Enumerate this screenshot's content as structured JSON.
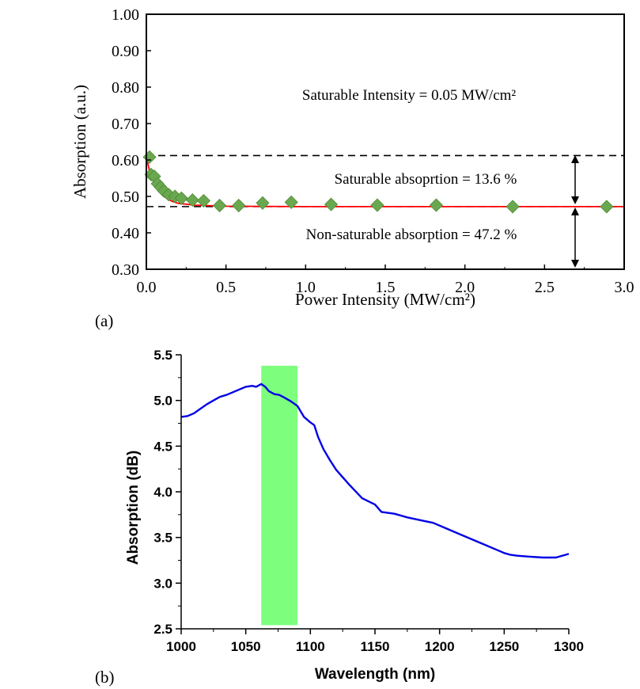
{
  "panel_a": {
    "label": "(a)",
    "annotations": {
      "saturable_intensity": "Saturable Intensity = 0.05 MW/cm²",
      "saturable_absorption": "Saturable absoprtion  = 13.6 %",
      "non_saturable_absorption": "Non-saturable absorption = 47.2 %"
    }
  },
  "panel_b": {
    "label": "(b)"
  },
  "colors": {
    "marker_green": "#6aa84f",
    "marker_edge": "#4f8a35",
    "fit_red": "#ff0000",
    "spectrum_blue": "#0000e6",
    "band_green": "#66ff66"
  },
  "chart_data": [
    {
      "type": "scatter",
      "xlabel": "Power Intensity (MW/cm²)",
      "ylabel": "Absorption (a.u.)",
      "xlim": [
        0,
        3.0
      ],
      "ylim": [
        0.3,
        1.0
      ],
      "x_ticks": [
        "0.0",
        "0.5",
        "1.0",
        "1.5",
        "2.0",
        "2.5",
        "3.0"
      ],
      "y_ticks": [
        "0.30",
        "0.40",
        "0.50",
        "0.60",
        "0.70",
        "0.80",
        "0.90",
        "1.00"
      ],
      "grid": false,
      "series": [
        {
          "kind": "markers",
          "marker": "diamond",
          "x": [
            0.02,
            0.03,
            0.05,
            0.07,
            0.09,
            0.11,
            0.14,
            0.18,
            0.22,
            0.29,
            0.36,
            0.46,
            0.58,
            0.73,
            0.91,
            1.16,
            1.45,
            1.82,
            2.3,
            2.89
          ],
          "y": [
            0.608,
            0.56,
            0.555,
            0.535,
            0.525,
            0.515,
            0.505,
            0.5,
            0.495,
            0.49,
            0.488,
            0.475,
            0.475,
            0.482,
            0.484,
            0.478,
            0.476,
            0.476,
            0.472,
            0.472
          ]
        },
        {
          "kind": "fit-line",
          "x": [
            0.0,
            0.02,
            0.05,
            0.08,
            0.12,
            0.16,
            0.2,
            0.3,
            0.5,
            1.0,
            2.0,
            3.0
          ],
          "y": [
            0.608,
            0.57,
            0.54,
            0.515,
            0.497,
            0.487,
            0.481,
            0.476,
            0.473,
            0.472,
            0.472,
            0.472
          ]
        }
      ],
      "reference_lines": [
        {
          "style": "dashed",
          "y": 0.612
        },
        {
          "style": "dashed",
          "y": 0.472
        }
      ]
    },
    {
      "type": "line",
      "xlabel": "Wavelength (nm)",
      "ylabel": "Absorption (dB)",
      "xlim": [
        1000,
        1300
      ],
      "ylim": [
        2.5,
        5.5
      ],
      "x_ticks": [
        "1000",
        "1050",
        "1100",
        "1150",
        "1200",
        "1250",
        "1300"
      ],
      "y_ticks": [
        "2.5",
        "3.0",
        "3.5",
        "4.0",
        "4.5",
        "5.0",
        "5.5"
      ],
      "grid": false,
      "highlight_band": {
        "x_from": 1062,
        "x_to": 1090,
        "y_from": 2.54,
        "y_to": 5.38
      },
      "series": [
        {
          "x": [
            1000,
            1005,
            1010,
            1015,
            1020,
            1025,
            1030,
            1035,
            1040,
            1045,
            1050,
            1055,
            1058,
            1062,
            1065,
            1068,
            1072,
            1076,
            1080,
            1085,
            1090,
            1095,
            1100,
            1103,
            1106,
            1110,
            1115,
            1120,
            1130,
            1140,
            1150,
            1155,
            1165,
            1175,
            1185,
            1195,
            1205,
            1215,
            1225,
            1235,
            1245,
            1250,
            1255,
            1260,
            1270,
            1280,
            1290,
            1300
          ],
          "y": [
            4.82,
            4.83,
            4.86,
            4.91,
            4.96,
            5.0,
            5.04,
            5.06,
            5.09,
            5.12,
            5.15,
            5.16,
            5.15,
            5.18,
            5.15,
            5.1,
            5.07,
            5.06,
            5.03,
            4.99,
            4.94,
            4.82,
            4.76,
            4.73,
            4.6,
            4.47,
            4.35,
            4.24,
            4.08,
            3.93,
            3.86,
            3.78,
            3.76,
            3.72,
            3.69,
            3.66,
            3.6,
            3.54,
            3.48,
            3.42,
            3.36,
            3.33,
            3.31,
            3.3,
            3.29,
            3.28,
            3.28,
            3.32
          ]
        }
      ]
    }
  ]
}
